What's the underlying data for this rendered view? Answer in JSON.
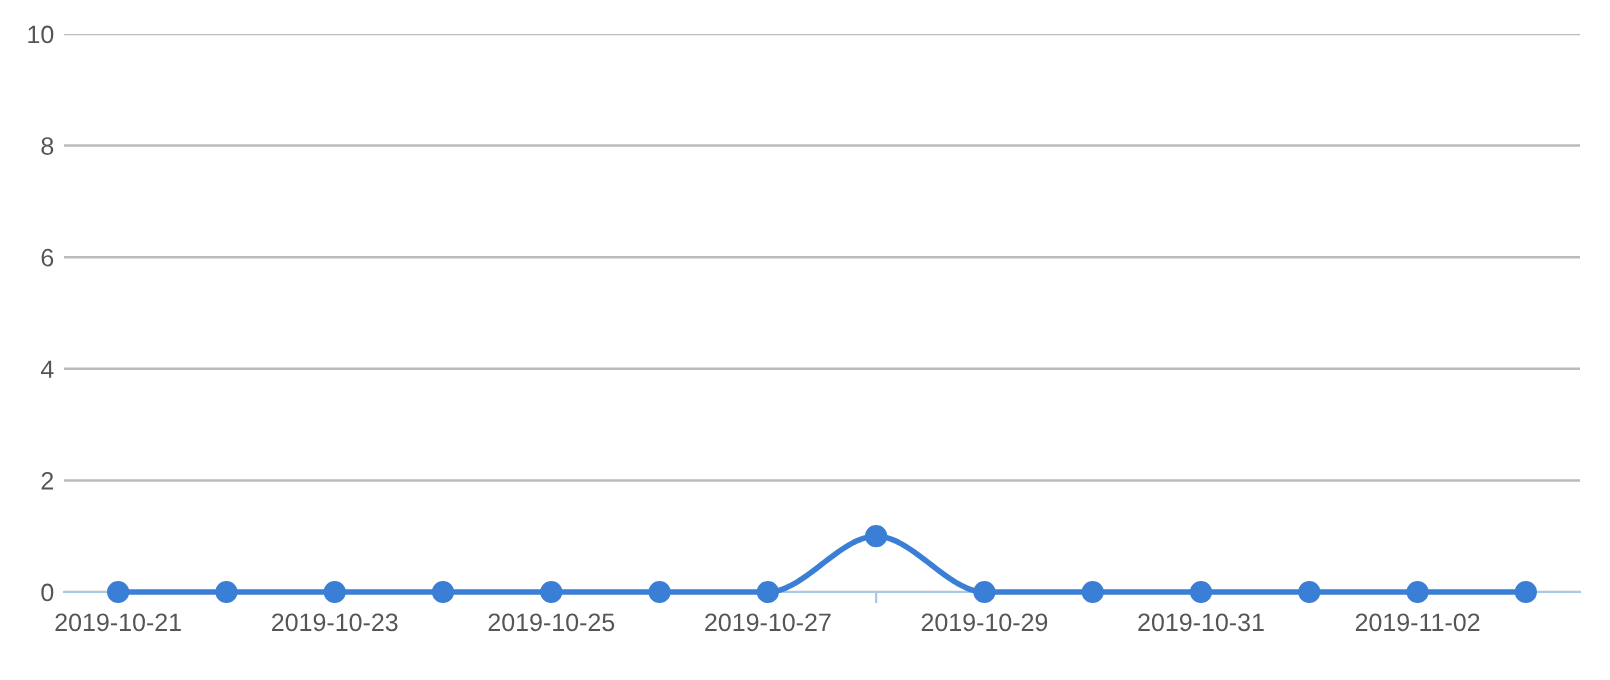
{
  "chart_data": {
    "type": "line",
    "categories": [
      "2019-10-21",
      null,
      "2019-10-23",
      null,
      "2019-10-25",
      null,
      "2019-10-27",
      null,
      "2019-10-29",
      null,
      "2019-10-31",
      null,
      "2019-11-02",
      null
    ],
    "series": [
      {
        "color": "#3a7fd5",
        "values": [
          0,
          0,
          0,
          0,
          0,
          0,
          0,
          1,
          0,
          0,
          0,
          0,
          0,
          0
        ]
      }
    ],
    "ylim": [
      0,
      10
    ],
    "yticks": [
      0,
      2,
      4,
      6,
      8,
      10
    ],
    "grid": "y",
    "marker": "circle",
    "line_style": "solid"
  }
}
